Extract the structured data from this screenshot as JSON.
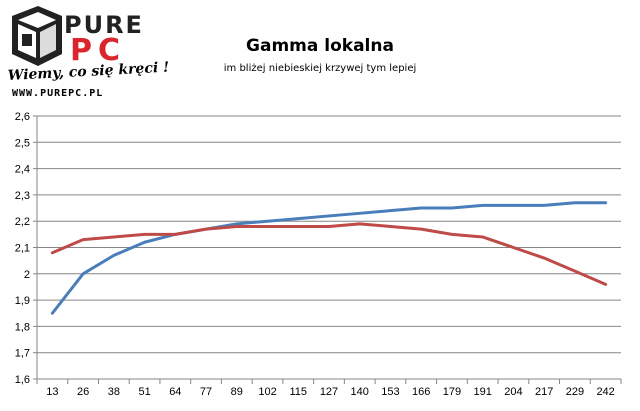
{
  "logo": {
    "word_top": "PURE",
    "word_bottom": "PC",
    "slogan": "Wiemy, co się kręci !",
    "url": "WWW.PUREPC.PL",
    "colors": {
      "dark": "#222222",
      "red": "#d9252b"
    }
  },
  "chart_data": {
    "type": "line",
    "title": "Gamma lokalna",
    "subtitle": "im bliżej niebieskiej krzywej tym lepiej",
    "xlabel": "",
    "ylabel": "",
    "categories": [
      "13",
      "26",
      "38",
      "51",
      "64",
      "77",
      "89",
      "102",
      "115",
      "127",
      "140",
      "153",
      "166",
      "179",
      "191",
      "204",
      "217",
      "229",
      "242"
    ],
    "ylim": [
      1.6,
      2.6
    ],
    "yticks": [
      "1,6",
      "1,7",
      "1,8",
      "1,9",
      "2",
      "2,1",
      "2,2",
      "2,3",
      "2,4",
      "2,5",
      "2,6"
    ],
    "grid": true,
    "legend": "none",
    "series": [
      {
        "color": "#4a7ebb",
        "values": [
          1.85,
          2.0,
          2.07,
          2.12,
          2.15,
          2.17,
          2.19,
          2.2,
          2.21,
          2.22,
          2.23,
          2.24,
          2.25,
          2.25,
          2.26,
          2.26,
          2.26,
          2.27,
          2.27
        ]
      },
      {
        "color": "#be4b48",
        "values": [
          2.08,
          2.13,
          2.14,
          2.15,
          2.15,
          2.17,
          2.18,
          2.18,
          2.18,
          2.18,
          2.19,
          2.18,
          2.17,
          2.15,
          2.14,
          2.1,
          2.06,
          2.01,
          1.96
        ]
      }
    ]
  }
}
